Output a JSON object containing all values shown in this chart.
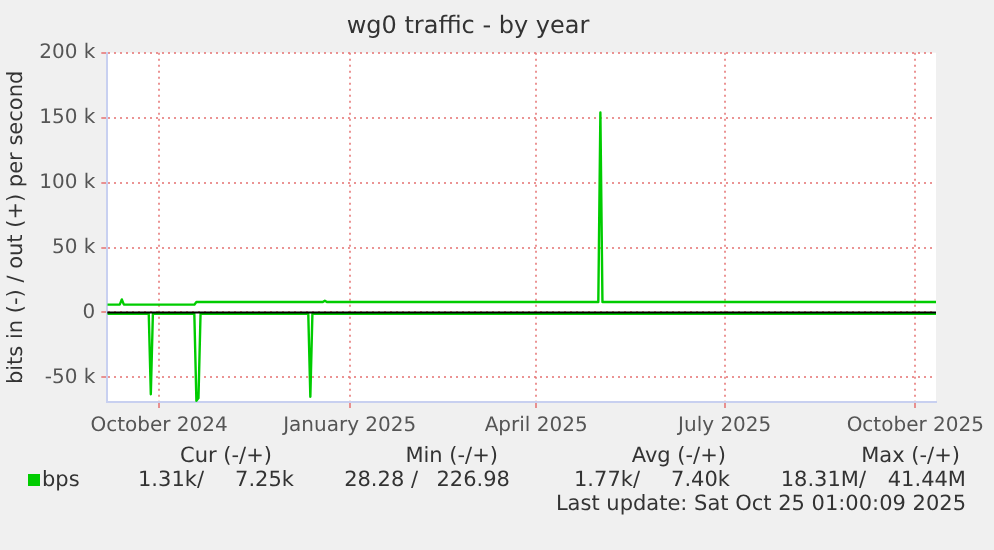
{
  "chart_data": {
    "type": "line",
    "title": "wg0 traffic - by year",
    "ylabel": "bits in (-) / out (+) per second",
    "xlim": [
      "2024-09-20",
      "2025-10-25"
    ],
    "xticks": [
      {
        "value": "2024-10-15",
        "label": "October 2024"
      },
      {
        "value": "2025-01-15",
        "label": "January 2025"
      },
      {
        "value": "2025-04-15",
        "label": "April 2025"
      },
      {
        "value": "2025-07-15",
        "label": "July 2025"
      },
      {
        "value": "2025-10-15",
        "label": "October 2025"
      }
    ],
    "ylim": [
      -69000,
      200000
    ],
    "yticks": [
      {
        "value": -50000,
        "label": "-50 k"
      },
      0,
      {
        "value": 50000,
        "label": "50 k"
      },
      {
        "value": 100000,
        "label": "100 k"
      },
      {
        "value": 150000,
        "label": "150 k"
      },
      {
        "value": 200000,
        "label": "200 k"
      }
    ],
    "grid": true,
    "legend": "bottom",
    "marker": "none",
    "series": [
      {
        "name": "bps",
        "color": "#00cc00",
        "x": [
          "2024-09-20",
          "2024-09-26",
          "2024-09-27",
          "2024-09-28",
          "2024-11-01",
          "2024-11-02",
          "2025-01-02",
          "2025-01-03",
          "2025-01-04",
          "2025-05-15",
          "2025-05-16",
          "2025-05-17",
          "2025-10-25"
        ],
        "values": [
          6000,
          6000,
          10000,
          6000,
          6000,
          8000,
          8000,
          9000,
          8000,
          8000,
          154000,
          8000,
          8000
        ]
      },
      {
        "color": "#00cc00",
        "x": [
          "2024-09-20",
          "2024-10-10",
          "2024-10-11",
          "2024-10-12",
          "2024-11-01",
          "2024-11-02",
          "2024-11-03",
          "2024-11-04",
          "2024-12-26",
          "2024-12-27",
          "2024-12-28",
          "2025-10-25"
        ],
        "values": [
          -1000,
          -1000,
          -63000,
          -1000,
          -1000,
          -68000,
          -66000,
          -1000,
          -1000,
          -65000,
          -1000,
          -1000
        ]
      }
    ],
    "annotations": [
      "Cur (-/+)",
      "Min (-/+)",
      "Avg (-/+)",
      "Max (-/+)",
      "1.31k/",
      "7.25k",
      "28.28 /",
      "226.98",
      "1.77k/",
      "7.40k",
      "18.31M/",
      "41.44M",
      "Last update: Sat Oct 25 01:00:09 2025"
    ]
  }
}
